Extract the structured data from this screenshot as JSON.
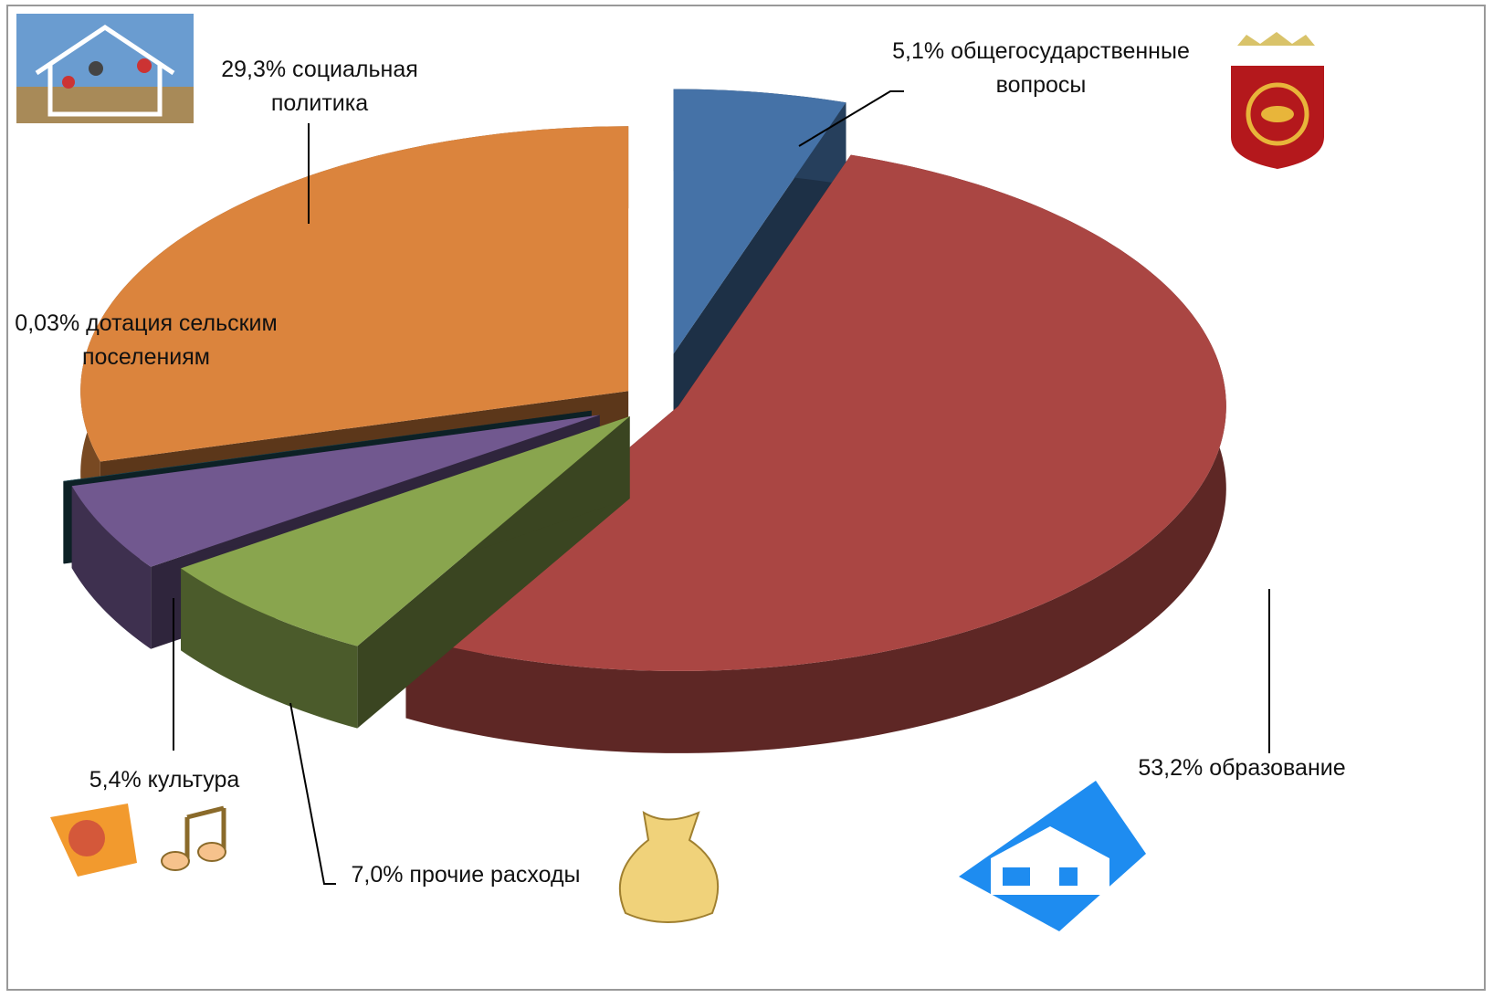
{
  "chart_data": {
    "type": "pie3d",
    "categories": [
      "общегосударственные вопросы",
      "образование",
      "прочие расходы",
      "культура",
      "дотация сельским поселениям",
      "социальная политика"
    ],
    "values": [
      5.1,
      53.2,
      7.0,
      5.4,
      0.03,
      29.3
    ],
    "value_labels": [
      "5,1%",
      "53,2%",
      "7,0%",
      "5,4%",
      "0,03%",
      "29,3%"
    ],
    "colors": [
      "#4572a7",
      "#aa4643",
      "#89a54e",
      "#71588f",
      "#1f4e5a",
      "#db843d"
    ]
  }
}
